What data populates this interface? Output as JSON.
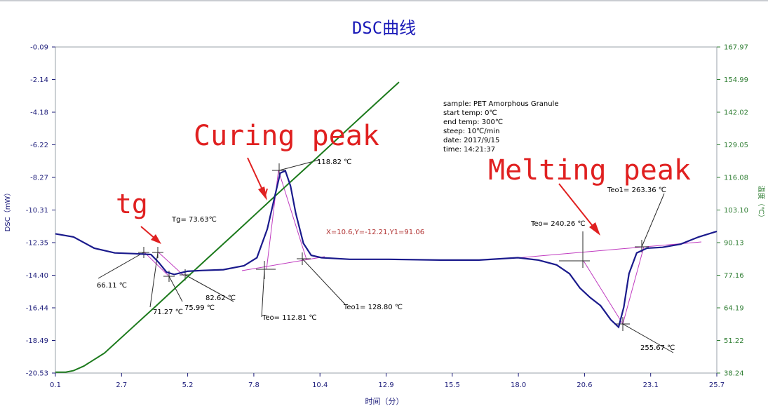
{
  "chart_data": {
    "type": "line",
    "title": "DSC曲线",
    "xlabel": "时间（分）",
    "ylabel": "DSC（mW）",
    "y2label": "温度（℃）",
    "xlim": [
      0.1,
      25.7
    ],
    "ylim": [
      -20.53,
      -0.09
    ],
    "y2lim": [
      38.24,
      167.97
    ],
    "x_ticks": [
      "0.1",
      "2.7",
      "5.2",
      "7.8",
      "10.4",
      "12.9",
      "15.5",
      "18.0",
      "20.6",
      "23.1",
      "25.7"
    ],
    "y_ticks": [
      "-0.09",
      "-2.14",
      "-4.18",
      "-6.22",
      "-8.27",
      "-10.31",
      "-12.35",
      "-14.40",
      "-16.44",
      "-18.49",
      "-20.53"
    ],
    "y2_ticks": [
      "167.97",
      "154.99",
      "142.02",
      "129.05",
      "116.08",
      "103.10",
      "90.13",
      "77.16",
      "64.19",
      "51.22",
      "38.24"
    ],
    "grid": false,
    "series": [
      {
        "name": "DSC",
        "axis": "left",
        "color": "#1a1a8c",
        "x": [
          0.1,
          0.8,
          1.6,
          2.4,
          3.2,
          3.8,
          4.1,
          4.4,
          4.7,
          5.2,
          5.8,
          6.6,
          7.4,
          7.9,
          8.3,
          8.6,
          8.8,
          9.0,
          9.2,
          9.4,
          9.7,
          10.0,
          10.4,
          11.5,
          13.0,
          15.0,
          16.5,
          18.0,
          18.8,
          19.5,
          20.0,
          20.4,
          20.8,
          21.2,
          21.6,
          21.9,
          22.1,
          22.3,
          22.6,
          23.0,
          23.6,
          24.3,
          25.0,
          25.7
        ],
        "y": [
          -11.8,
          -12.0,
          -12.7,
          -13.0,
          -13.05,
          -13.1,
          -13.6,
          -14.2,
          -14.35,
          -14.15,
          -14.1,
          -14.05,
          -13.8,
          -13.3,
          -11.5,
          -9.4,
          -8.0,
          -7.85,
          -8.8,
          -10.5,
          -12.4,
          -13.15,
          -13.3,
          -13.4,
          -13.4,
          -13.45,
          -13.45,
          -13.3,
          -13.45,
          -13.75,
          -14.3,
          -15.2,
          -15.8,
          -16.3,
          -17.2,
          -17.65,
          -16.4,
          -14.3,
          -13.0,
          -12.7,
          -12.65,
          -12.45,
          -12.0,
          -11.65
        ]
      },
      {
        "name": "温度",
        "axis": "right",
        "color": "#1c7a1c",
        "x": [
          0.1,
          0.5,
          0.8,
          1.2,
          2.0,
          3.0,
          4.0,
          5.0,
          6.0,
          7.0,
          8.0,
          9.0,
          10.0,
          11.0,
          12.0,
          13.4
        ],
        "y": [
          38.6,
          38.6,
          39.2,
          41.0,
          46.2,
          55.6,
          65.0,
          74.5,
          84.0,
          93.4,
          102.9,
          112.4,
          121.8,
          131.3,
          140.8,
          154.0
        ]
      }
    ],
    "annotations": [
      {
        "text": "66.11 ℃"
      },
      {
        "text": "71.27 ℃"
      },
      {
        "text": "75.99 ℃"
      },
      {
        "text": "82.62 ℃"
      },
      {
        "text": "Tg= 73.63℃"
      },
      {
        "text": "118.82 ℃"
      },
      {
        "text": "Teo= 112.81 ℃"
      },
      {
        "text": "Teo1= 128.80 ℃"
      },
      {
        "text": "X=10.6,Y=-12.21,Y1=91.06"
      },
      {
        "text": "Teo= 240.26 ℃"
      },
      {
        "text": "Teo1= 263.36 ℃"
      },
      {
        "text": "255.67 ℃"
      }
    ],
    "info_box": [
      "sample:  PET Amorphous Granule",
      "start temp:  0℃",
      "end temp:  300℃",
      "steep:  10℃/min",
      "date:  2017/9/15",
      "time:  14:21:37"
    ],
    "callouts": [
      "Curing peak",
      "Melting peak",
      "tg"
    ]
  },
  "colors": {
    "dsc": "#1a1a8c",
    "temp": "#1c7a1c",
    "tangent": "#c03cc0",
    "arrow": "#e02020",
    "title": "#1a1ab8",
    "red_readout": "#b03030"
  }
}
